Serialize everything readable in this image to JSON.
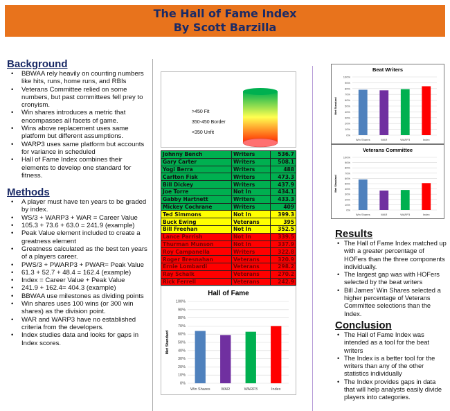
{
  "header": {
    "title": "The Hall  of Fame Index",
    "author": "By Scott Barzilla"
  },
  "background": {
    "heading": "Background",
    "items": [
      "BBWAA rely heavily on counting numbers like hits, runs, home runs, and RBIs",
      "Veterans Committee relied on some numbers, but past committees fell prey to cronyism.",
      "Win shares introduces a metric that encompasses all facets of game.",
      "Wins above replacement uses same platform but different assumptions.",
      "WARP3 uses same platform but accounts for variance in scheduled",
      "Hall of Fame Index combines their elements to develop one standard for fitness."
    ]
  },
  "methods": {
    "heading": "Methods",
    "items": [
      "A player must have ten years to be graded by index.",
      "WS/3 + WARP3 + WAR = Career Value",
      "105.3 + 73.6 + 63.0 = 241.9 (example)",
      "Peak Value element included to create a greatness element",
      "Greatness calculated as the best ten years of a players career.",
      "PWS/3 + PWARP3 + PWAR= Peak Value",
      "61.3 + 52.7 + 48.4 = 162.4 (example)",
      "Index = Career Value + Peak Value",
      "241.9 + 162.4= 404.3 (example)",
      "BBWAA use milestones as dividing points",
      "Win shares uses 100 wins (or 300 win  shares) as the  division point.",
      "WAR and WARP3 have no established criteria from the developers.",
      "Index studies data and looks for gaps in Index scores."
    ]
  },
  "scale": {
    "fit": ">450 Fit",
    "border": "350-450 Border",
    "unfit": "<350 Unfit"
  },
  "players": [
    {
      "name": "Johnny Bench",
      "by": "Writers",
      "index": "536.7",
      "tier": "g"
    },
    {
      "name": "Gary Carter",
      "by": "Writers",
      "index": "508.1",
      "tier": "g"
    },
    {
      "name": "Yogi Berra",
      "by": "Writers",
      "index": "488",
      "tier": "g"
    },
    {
      "name": "Carlton Fisk",
      "by": "Writers",
      "index": "473.3",
      "tier": "g"
    },
    {
      "name": "Bill Dickey",
      "by": "Writers",
      "index": "437.9",
      "tier": "g"
    },
    {
      "name": "Joe Torre",
      "by": "Not In",
      "index": "434.1",
      "tier": "g"
    },
    {
      "name": "Gabby Hartnett",
      "by": "Writers",
      "index": "433.3",
      "tier": "g"
    },
    {
      "name": "Mickey Cochrane",
      "by": "Writers",
      "index": "409",
      "tier": "g"
    },
    {
      "name": "Ted Simmons",
      "by": "Not In",
      "index": "399.3",
      "tier": "y"
    },
    {
      "name": "Buck Ewing",
      "by": "Veterans",
      "index": "395",
      "tier": "y"
    },
    {
      "name": "Bill Freehan",
      "by": "Not In",
      "index": "352.5",
      "tier": "y"
    },
    {
      "name": "Lance Parrish",
      "by": "Not In",
      "index": "339.5",
      "tier": "r"
    },
    {
      "name": "Thurman Munson",
      "by": "Not In",
      "index": "337.9",
      "tier": "r"
    },
    {
      "name": "Roy Campanella",
      "by": "Writers",
      "index": "322.8",
      "tier": "r"
    },
    {
      "name": "Roger Bresnahan",
      "by": "Veterans",
      "index": "320.9",
      "tier": "r"
    },
    {
      "name": "Ernie Lombardi",
      "by": "Veterans",
      "index": "298.2",
      "tier": "r"
    },
    {
      "name": "Ray Schalk",
      "by": "Veterans",
      "index": "270.2",
      "tier": "r"
    },
    {
      "name": "Rick Ferrell",
      "by": "Veterans",
      "index": "242.9",
      "tier": "r"
    }
  ],
  "results": {
    "heading": "Results",
    "items": [
      "The Hall of Fame Index matched up with a greater percentage of HOFers than the three components individually.",
      "The largest gap was with HOFers selected by the beat writers",
      "Bill James' Win Shares selected a higher percentage of Veterans Committee selections than the Index."
    ]
  },
  "conclusion": {
    "heading": "Conclusion",
    "items": [
      "The Hall of Fame Index was intended as a tool for the beat writers",
      "The Index is a better tool for the writers than any of the other statistics individually",
      "The Index provides gaps in data that will help analysts easily divide players into categories."
    ]
  },
  "chart_data": [
    {
      "id": "hof",
      "type": "bar",
      "title": "Hall of Fame",
      "ylabel": "Met Standard",
      "categories": [
        "Win Shares",
        "WAR",
        "WARP3",
        "Index"
      ],
      "values": [
        64,
        59,
        63,
        70
      ],
      "colors": [
        "#4f81bd",
        "#7030a0",
        "#00b050",
        "#ff0000"
      ],
      "ylim": [
        0,
        100
      ],
      "yticks": [
        "0%",
        "10%",
        "20%",
        "30%",
        "40%",
        "50%",
        "60%",
        "70%",
        "80%",
        "90%",
        "100%"
      ],
      "grid": true
    },
    {
      "id": "beat",
      "type": "bar",
      "title": "Beat Writers",
      "ylabel": "Met Standard",
      "categories": [
        "Win Shares",
        "WAR",
        "WARP3",
        "Index"
      ],
      "values": [
        78,
        77,
        79,
        84
      ],
      "colors": [
        "#4f81bd",
        "#7030a0",
        "#00b050",
        "#ff0000"
      ],
      "ylim": [
        0,
        100
      ],
      "yticks": [
        "0%",
        "10%",
        "20%",
        "30%",
        "40%",
        "50%",
        "60%",
        "70%",
        "80%",
        "90%",
        "100%"
      ],
      "grid": true
    },
    {
      "id": "vet",
      "type": "bar",
      "title": "Veterans Committee",
      "ylabel": "Met Standard",
      "categories": [
        "Win Shares",
        "WAR",
        "WARP3",
        "Index"
      ],
      "values": [
        58,
        37,
        38,
        51
      ],
      "colors": [
        "#4f81bd",
        "#7030a0",
        "#00b050",
        "#ff0000"
      ],
      "ylim": [
        0,
        100
      ],
      "yticks": [
        "0%",
        "10%",
        "20%",
        "30%",
        "40%",
        "50%",
        "60%",
        "70%",
        "80%",
        "90%",
        "100%"
      ],
      "grid": true
    }
  ]
}
